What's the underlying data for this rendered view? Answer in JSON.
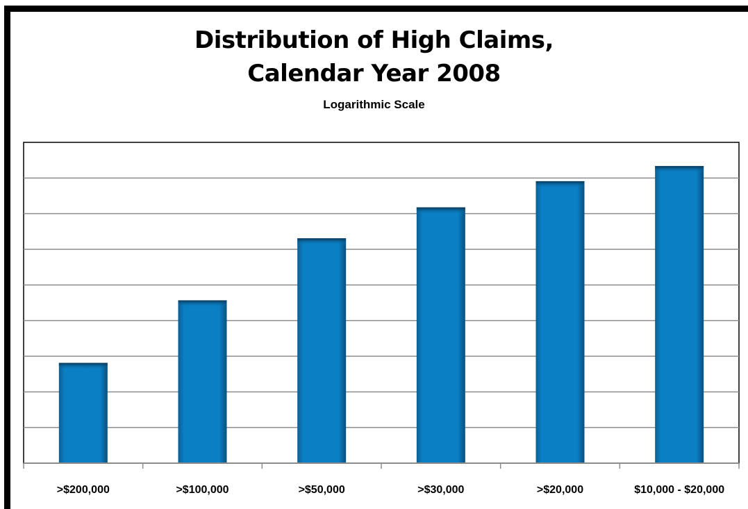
{
  "chart_data": {
    "type": "bar",
    "title": "Distribution of High Claims,",
    "title_line2": "Calendar Year 2008",
    "subtitle": "Logarithmic Scale",
    "xlabel": "",
    "ylabel": "",
    "y_scale": "log",
    "y_tick_labels_shown": false,
    "grid": "horizontal",
    "legend": "none",
    "categories": [
      ">$200,000",
      ">$100,000",
      ">$50,000",
      ">$30,000",
      ">$20,000",
      "$10,000 - $20,000"
    ],
    "values": [
      26,
      100,
      380,
      740,
      1300,
      1800
    ],
    "ylim": [
      3,
      3000
    ],
    "colors": {
      "bar": "#0a7fc4",
      "bar_edge": "#0b3f66",
      "grid": "#8c8c8c",
      "axis": "#8c8c8c",
      "frame": "#000000"
    }
  }
}
